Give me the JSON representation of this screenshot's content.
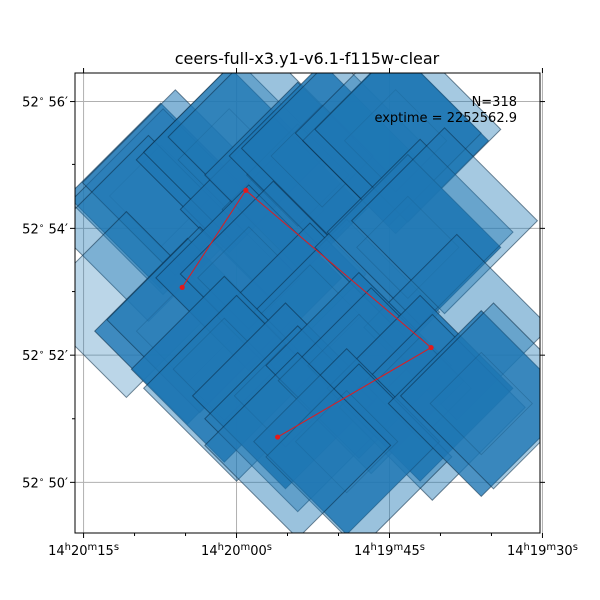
{
  "chart_data": {
    "type": "scatter",
    "title": "ceers-full-x3.y1-v6.1-f115w-clear",
    "annotation": {
      "n_label": "N=318",
      "exptime_label": "exptime = 2252562.9"
    },
    "x_ticks": [
      {
        "h": "14",
        "m": "20",
        "s": "15",
        "ra_deg": 215.0625
      },
      {
        "h": "14",
        "m": "20",
        "s": "00",
        "ra_deg": 215.0
      },
      {
        "h": "14",
        "m": "19",
        "s": "45",
        "ra_deg": 214.9375
      },
      {
        "h": "14",
        "m": "19",
        "s": "30",
        "ra_deg": 214.875
      }
    ],
    "y_ticks": [
      {
        "deg": "52",
        "min": "50",
        "dec_deg": 52.8333
      },
      {
        "deg": "52",
        "min": "52",
        "dec_deg": 52.8667
      },
      {
        "deg": "52",
        "min": "54",
        "dec_deg": 52.9
      },
      {
        "deg": "52",
        "min": "56",
        "dec_deg": 52.9333
      }
    ],
    "xlim_ra_deg": [
      215.066,
      214.876
    ],
    "ylim_dec_deg": [
      52.82,
      52.9408
    ],
    "grid": true,
    "path_color": "#e31a1c",
    "footprint_color": "#1f77b4",
    "footprint_edge": "#0a2a44",
    "path_points": [
      {
        "ra": 215.0222,
        "dec": 52.8845
      },
      {
        "ra": 214.9962,
        "dec": 52.91
      },
      {
        "ra": 214.9205,
        "dec": 52.8687
      },
      {
        "ra": 214.9832,
        "dec": 52.8452
      }
    ],
    "footprints": [
      {
        "ra": 215.031,
        "dec": 52.9085,
        "alpha": 0.75
      },
      {
        "ra": 215.03,
        "dec": 52.907,
        "alpha": 0.45
      },
      {
        "ra": 215.025,
        "dec": 52.912,
        "alpha": 0.55
      },
      {
        "ra": 215.036,
        "dec": 52.9,
        "alpha": 0.4
      },
      {
        "ra": 215.003,
        "dec": 52.918,
        "alpha": 0.75
      },
      {
        "ra": 215.0,
        "dec": 52.92,
        "alpha": 0.4
      },
      {
        "ra": 214.99,
        "dec": 52.924,
        "alpha": 0.45
      },
      {
        "ra": 214.985,
        "dec": 52.905,
        "alpha": 0.8
      },
      {
        "ra": 214.975,
        "dec": 52.914,
        "alpha": 0.8
      },
      {
        "ra": 214.965,
        "dec": 52.919,
        "alpha": 0.85
      },
      {
        "ra": 214.96,
        "dec": 52.921,
        "alpha": 0.45
      },
      {
        "ra": 214.935,
        "dec": 52.923,
        "alpha": 0.9
      },
      {
        "ra": 214.938,
        "dec": 52.925,
        "alpha": 0.45
      },
      {
        "ra": 214.93,
        "dec": 52.926,
        "alpha": 0.4
      },
      {
        "ra": 215.045,
        "dec": 52.88,
        "alpha": 0.3
      },
      {
        "ra": 215.02,
        "dec": 52.873,
        "alpha": 0.8
      },
      {
        "ra": 215.015,
        "dec": 52.876,
        "alpha": 0.5
      },
      {
        "ra": 214.995,
        "dec": 52.887,
        "alpha": 0.9
      },
      {
        "ra": 214.985,
        "dec": 52.888,
        "alpha": 0.45
      },
      {
        "ra": 214.97,
        "dec": 52.877,
        "alpha": 0.85
      },
      {
        "ra": 214.955,
        "dec": 52.878,
        "alpha": 0.45
      },
      {
        "ra": 214.93,
        "dec": 52.895,
        "alpha": 0.9
      },
      {
        "ra": 214.925,
        "dec": 52.899,
        "alpha": 0.45
      },
      {
        "ra": 214.915,
        "dec": 52.902,
        "alpha": 0.4
      },
      {
        "ra": 214.91,
        "dec": 52.874,
        "alpha": 0.45
      },
      {
        "ra": 215.005,
        "dec": 52.863,
        "alpha": 0.85
      },
      {
        "ra": 215.0,
        "dec": 52.858,
        "alpha": 0.45
      },
      {
        "ra": 214.98,
        "dec": 52.856,
        "alpha": 0.9
      },
      {
        "ra": 214.975,
        "dec": 52.85,
        "alpha": 0.45
      },
      {
        "ra": 214.95,
        "dec": 52.864,
        "alpha": 0.85
      },
      {
        "ra": 214.945,
        "dec": 52.86,
        "alpha": 0.45
      },
      {
        "ra": 214.925,
        "dec": 52.858,
        "alpha": 0.9
      },
      {
        "ra": 214.92,
        "dec": 52.853,
        "alpha": 0.45
      },
      {
        "ra": 214.955,
        "dec": 52.844,
        "alpha": 0.85
      },
      {
        "ra": 214.95,
        "dec": 52.84,
        "alpha": 0.45
      },
      {
        "ra": 214.975,
        "dec": 52.843,
        "alpha": 0.45
      },
      {
        "ra": 214.9,
        "dec": 52.854,
        "alpha": 0.8
      },
      {
        "ra": 214.895,
        "dec": 52.856,
        "alpha": 0.4
      }
    ],
    "footprint_size_deg": 0.0345,
    "footprint_angle_deg": 45
  }
}
